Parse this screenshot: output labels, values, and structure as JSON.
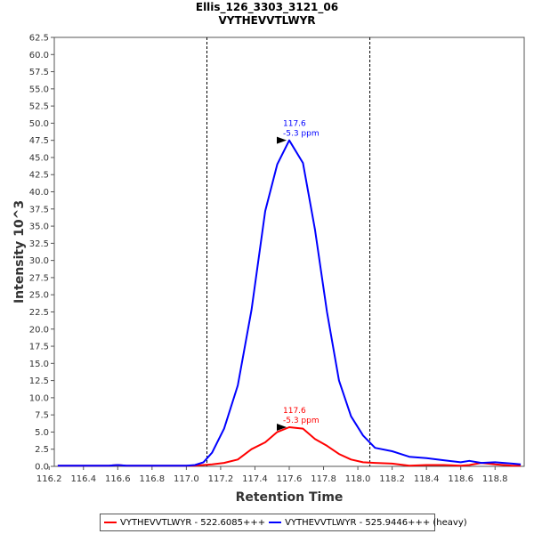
{
  "chart_data": {
    "type": "line",
    "title": "Ellis_126_3303_3121_06",
    "subtitle": "VYTHEVVTLWYR",
    "xlabel": "Retention Time",
    "ylabel": "Intensity 10^3",
    "xlim": [
      116.23,
      118.97
    ],
    "ylim": [
      0,
      62.5
    ],
    "x_ticks": [
      "116.2",
      "116.4",
      "116.6",
      "116.8",
      "117.0",
      "117.2",
      "117.4",
      "117.6",
      "117.8",
      "118.0",
      "118.2",
      "118.4",
      "118.6",
      "118.8"
    ],
    "y_ticks": [
      "0.0",
      "2.5",
      "5.0",
      "7.5",
      "10.0",
      "12.5",
      "15.0",
      "17.5",
      "20.0",
      "22.5",
      "25.0",
      "27.5",
      "30.0",
      "32.5",
      "35.0",
      "37.5",
      "40.0",
      "42.5",
      "45.0",
      "47.5",
      "50.0",
      "52.5",
      "55.0",
      "57.5",
      "60.0",
      "62.5"
    ],
    "boundaries": [
      117.12,
      118.07
    ],
    "grid": false,
    "legend_position": "bottom",
    "series": [
      {
        "name": "VYTHEVVTLWYR - 522.6085+++",
        "color": "#ff0000",
        "x": [
          116.25,
          116.35,
          116.45,
          116.55,
          116.6,
          116.65,
          116.75,
          116.85,
          116.95,
          117.0,
          117.05,
          117.1,
          117.15,
          117.22,
          117.3,
          117.38,
          117.46,
          117.53,
          117.6,
          117.68,
          117.75,
          117.82,
          117.89,
          117.96,
          118.03,
          118.1,
          118.2,
          118.3,
          118.4,
          118.5,
          118.6,
          118.65,
          118.72,
          118.8,
          118.9,
          118.95
        ],
        "y": [
          0.1,
          0.1,
          0.1,
          0.1,
          0.2,
          0.1,
          0.1,
          0.1,
          0.1,
          0.1,
          0.1,
          0.2,
          0.3,
          0.5,
          1.0,
          2.5,
          3.5,
          5.0,
          5.7,
          5.5,
          4.0,
          3.0,
          1.8,
          1.0,
          0.6,
          0.5,
          0.4,
          0.1,
          0.2,
          0.2,
          0.1,
          0.2,
          0.5,
          0.3,
          0.1,
          0.1
        ]
      },
      {
        "name": "VYTHEVVTLWYR - 525.9446+++ (heavy)",
        "color": "#0000ff",
        "x": [
          116.25,
          116.35,
          116.45,
          116.55,
          116.6,
          116.65,
          116.75,
          116.85,
          116.95,
          117.0,
          117.05,
          117.1,
          117.15,
          117.22,
          117.3,
          117.38,
          117.46,
          117.53,
          117.6,
          117.68,
          117.75,
          117.82,
          117.89,
          117.96,
          118.03,
          118.1,
          118.2,
          118.3,
          118.4,
          118.5,
          118.6,
          118.65,
          118.72,
          118.8,
          118.9,
          118.95
        ],
        "y": [
          0.1,
          0.1,
          0.1,
          0.1,
          0.2,
          0.1,
          0.1,
          0.1,
          0.1,
          0.1,
          0.2,
          0.6,
          2.0,
          5.5,
          11.8,
          22.8,
          37.2,
          44.0,
          47.5,
          44.2,
          34.5,
          22.5,
          12.5,
          7.3,
          4.5,
          2.7,
          2.2,
          1.4,
          1.2,
          0.9,
          0.6,
          0.8,
          0.5,
          0.6,
          0.4,
          0.3
        ]
      }
    ],
    "annotations": [
      {
        "series": 1,
        "x": 117.6,
        "y": 47.5,
        "line1": "117.6",
        "line2": "-5.3 ppm"
      },
      {
        "series": 0,
        "x": 117.6,
        "y": 5.7,
        "line1": "117.6",
        "line2": "-5.3 ppm"
      }
    ]
  }
}
